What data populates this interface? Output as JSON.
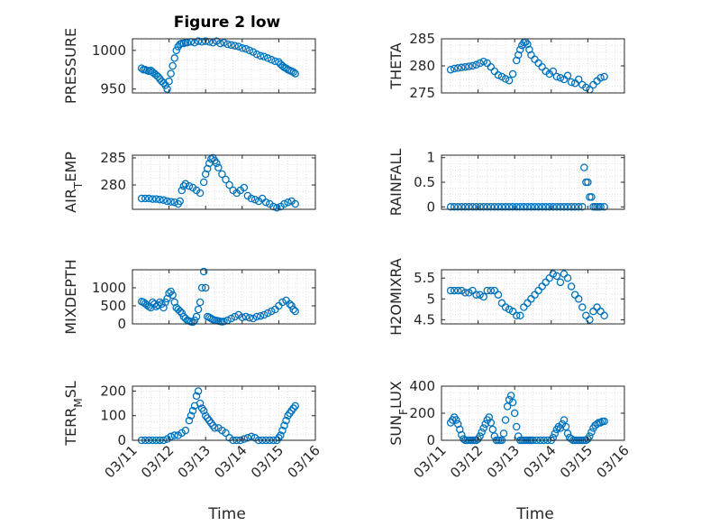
{
  "title": "Figure 2 low",
  "chart_data": {
    "type": "scatter",
    "marker_color": "#0072BD",
    "grid": "dotted minor",
    "x_tick_labels": [
      "03/11",
      "03/12",
      "03/13",
      "03/14",
      "03/15",
      "03/16"
    ],
    "xlim": [
      0,
      5
    ],
    "xlabel": "Time",
    "panels": [
      {
        "ylabel_main": "PRESSURE",
        "ylabel_sub": "",
        "ylim": [
          945,
          1015
        ],
        "yticks": [
          950,
          1000
        ],
        "x": [
          0.25,
          0.3,
          0.35,
          0.4,
          0.45,
          0.5,
          0.55,
          0.6,
          0.65,
          0.7,
          0.75,
          0.8,
          0.85,
          0.9,
          0.95,
          1.0,
          1.05,
          1.1,
          1.15,
          1.2,
          1.25,
          1.3,
          1.35,
          1.4,
          1.45,
          1.5,
          1.6,
          1.7,
          1.8,
          1.9,
          2.0,
          2.1,
          2.2,
          2.3,
          2.4,
          2.5,
          2.6,
          2.7,
          2.8,
          2.9,
          3.0,
          3.1,
          3.2,
          3.3,
          3.4,
          3.5,
          3.6,
          3.7,
          3.8,
          3.9,
          4.0,
          4.05,
          4.1,
          4.15,
          4.2,
          4.25,
          4.3,
          4.35,
          4.4,
          4.45
        ],
        "y": [
          977,
          975,
          975,
          974,
          973,
          974,
          972,
          970,
          968,
          966,
          963,
          960,
          958,
          955,
          950,
          960,
          970,
          980,
          990,
          1000,
          1005,
          1008,
          1009,
          1009,
          1010,
          1010,
          1011,
          1010,
          1012,
          1011,
          1012,
          1011,
          1010,
          1012,
          1009,
          1010,
          1008,
          1007,
          1006,
          1005,
          1003,
          1002,
          1000,
          998,
          995,
          993,
          992,
          990,
          988,
          986,
          985,
          982,
          980,
          978,
          977,
          975,
          974,
          973,
          972,
          970
        ]
      },
      {
        "ylabel_main": "THETA",
        "ylabel_sub": "",
        "ylim": [
          275,
          285
        ],
        "yticks": [
          275,
          280,
          285
        ],
        "x": [
          0.25,
          0.35,
          0.45,
          0.55,
          0.65,
          0.75,
          0.85,
          0.95,
          1.05,
          1.15,
          1.25,
          1.35,
          1.45,
          1.55,
          1.65,
          1.75,
          1.85,
          1.95,
          2.05,
          2.1,
          2.15,
          2.2,
          2.25,
          2.3,
          2.35,
          2.4,
          2.45,
          2.55,
          2.65,
          2.75,
          2.85,
          2.95,
          3.05,
          3.15,
          3.25,
          3.35,
          3.45,
          3.55,
          3.65,
          3.75,
          3.85,
          3.95,
          4.05,
          4.15,
          4.25,
          4.35,
          4.45
        ],
        "y": [
          279.3,
          279.5,
          279.6,
          279.7,
          279.8,
          279.9,
          280.0,
          280.2,
          280.5,
          280.8,
          280.5,
          279.8,
          279.0,
          278.3,
          278.0,
          277.6,
          277.3,
          278.5,
          281.0,
          282.0,
          283.0,
          283.8,
          284.3,
          284.4,
          284.0,
          283.0,
          282.0,
          281.2,
          280.5,
          279.8,
          279.0,
          278.5,
          279.0,
          278.0,
          277.8,
          277.5,
          278.2,
          277.0,
          276.8,
          277.5,
          276.5,
          276.0,
          275.6,
          276.5,
          277.2,
          277.8,
          278.0
        ]
      },
      {
        "ylabel_main": "AIR",
        "ylabel_sub": "T",
        "ylabel_tail": "EMP",
        "ylim": [
          275.5,
          285.5
        ],
        "yticks": [
          280,
          285
        ],
        "x": [
          0.25,
          0.35,
          0.45,
          0.55,
          0.65,
          0.75,
          0.85,
          0.95,
          1.05,
          1.15,
          1.25,
          1.3,
          1.35,
          1.4,
          1.45,
          1.55,
          1.65,
          1.75,
          1.85,
          1.95,
          2.0,
          2.05,
          2.1,
          2.15,
          2.2,
          2.25,
          2.3,
          2.35,
          2.45,
          2.55,
          2.65,
          2.75,
          2.85,
          2.95,
          3.05,
          3.15,
          3.25,
          3.35,
          3.45,
          3.55,
          3.65,
          3.75,
          3.85,
          3.95,
          4.05,
          4.15,
          4.25,
          4.35,
          4.45
        ],
        "y": [
          277.5,
          277.5,
          277.5,
          277.4,
          277.4,
          277.3,
          277.2,
          277.0,
          276.9,
          276.8,
          276.5,
          277.0,
          279.0,
          279.8,
          280.2,
          279.8,
          279.5,
          279.0,
          278.5,
          280.5,
          282.0,
          283.0,
          284.0,
          284.8,
          285.0,
          284.5,
          284.0,
          283.2,
          282.0,
          281.0,
          280.0,
          279.0,
          278.5,
          279.0,
          279.5,
          278.0,
          277.5,
          277.3,
          277.0,
          277.5,
          276.8,
          276.5,
          276.0,
          275.8,
          276.0,
          276.5,
          276.8,
          277.0,
          276.5
        ]
      },
      {
        "ylabel_main": "RAINFALL",
        "ylabel_sub": "",
        "ylim": [
          -0.05,
          1.05
        ],
        "yticks": [
          0,
          0.5,
          1
        ],
        "x": [
          0.25,
          0.35,
          0.45,
          0.55,
          0.65,
          0.75,
          0.85,
          0.95,
          1.05,
          1.15,
          1.25,
          1.35,
          1.45,
          1.55,
          1.65,
          1.75,
          1.85,
          1.95,
          2.05,
          2.15,
          2.25,
          2.35,
          2.45,
          2.55,
          2.65,
          2.75,
          2.85,
          2.95,
          3.05,
          3.15,
          3.25,
          3.35,
          3.45,
          3.55,
          3.65,
          3.75,
          3.85,
          3.9,
          3.95,
          4.0,
          4.05,
          4.1,
          4.15,
          4.2,
          4.25,
          4.3,
          4.35,
          4.45
        ],
        "y": [
          0,
          0,
          0,
          0,
          0,
          0,
          0,
          0,
          0,
          0,
          0,
          0,
          0,
          0,
          0,
          0,
          0,
          0,
          0,
          0,
          0,
          0,
          0,
          0,
          0,
          0,
          0,
          0,
          0,
          0,
          0,
          0,
          0,
          0,
          0,
          0,
          0,
          0.8,
          0.5,
          0.5,
          0.2,
          0.2,
          0,
          0,
          0,
          0,
          0,
          0
        ]
      },
      {
        "ylabel_main": "MIXDEPTH",
        "ylabel_sub": "",
        "ylim": [
          0,
          1500
        ],
        "yticks": [
          0,
          500,
          1000
        ],
        "x": [
          0.25,
          0.3,
          0.35,
          0.4,
          0.45,
          0.5,
          0.55,
          0.6,
          0.65,
          0.7,
          0.75,
          0.8,
          0.85,
          0.9,
          0.95,
          1.0,
          1.05,
          1.1,
          1.15,
          1.2,
          1.25,
          1.3,
          1.35,
          1.4,
          1.45,
          1.5,
          1.55,
          1.6,
          1.65,
          1.7,
          1.75,
          1.8,
          1.85,
          1.9,
          1.95,
          2.0,
          2.05,
          2.1,
          2.15,
          2.2,
          2.25,
          2.3,
          2.35,
          2.4,
          2.45,
          2.5,
          2.6,
          2.7,
          2.8,
          2.9,
          3.0,
          3.1,
          3.2,
          3.3,
          3.4,
          3.5,
          3.6,
          3.7,
          3.8,
          3.9,
          4.0,
          4.1,
          4.2,
          4.3,
          4.35,
          4.4,
          4.45
        ],
        "y": [
          620,
          600,
          560,
          520,
          480,
          450,
          600,
          550,
          480,
          520,
          600,
          550,
          450,
          600,
          700,
          850,
          900,
          800,
          600,
          450,
          400,
          350,
          300,
          200,
          150,
          100,
          80,
          60,
          50,
          100,
          200,
          400,
          600,
          1000,
          1450,
          1000,
          200,
          180,
          150,
          120,
          100,
          90,
          80,
          70,
          60,
          70,
          100,
          150,
          200,
          250,
          180,
          200,
          170,
          150,
          200,
          220,
          250,
          300,
          350,
          400,
          500,
          600,
          650,
          550,
          500,
          400,
          350
        ]
      },
      {
        "ylabel_main": "H2OMIXRA",
        "ylabel_sub": "",
        "ylim": [
          4.4,
          5.7
        ],
        "yticks": [
          4.5,
          5,
          5.5
        ],
        "x": [
          0.25,
          0.35,
          0.45,
          0.55,
          0.65,
          0.75,
          0.85,
          0.95,
          1.05,
          1.15,
          1.25,
          1.35,
          1.45,
          1.55,
          1.65,
          1.75,
          1.85,
          1.95,
          2.05,
          2.15,
          2.25,
          2.35,
          2.45,
          2.55,
          2.65,
          2.75,
          2.85,
          2.95,
          3.05,
          3.15,
          3.25,
          3.35,
          3.45,
          3.55,
          3.65,
          3.75,
          3.85,
          3.95,
          4.05,
          4.15,
          4.25,
          4.35,
          4.45
        ],
        "y": [
          5.2,
          5.2,
          5.2,
          5.2,
          5.15,
          5.15,
          5.2,
          5.1,
          5.1,
          5.05,
          5.2,
          5.2,
          5.2,
          5.1,
          4.9,
          4.8,
          4.75,
          4.7,
          4.6,
          4.6,
          4.8,
          4.9,
          5.0,
          5.1,
          5.2,
          5.3,
          5.4,
          5.5,
          5.6,
          5.55,
          5.4,
          5.6,
          5.5,
          5.3,
          5.1,
          5.0,
          4.8,
          4.6,
          4.5,
          4.7,
          4.8,
          4.7,
          4.6
        ]
      },
      {
        "ylabel_main": "TERR",
        "ylabel_sub": "M",
        "ylabel_tail": "SL",
        "ylim": [
          0,
          220
        ],
        "yticks": [
          0,
          100,
          200
        ],
        "x": [
          0.25,
          0.35,
          0.45,
          0.55,
          0.65,
          0.75,
          0.85,
          0.95,
          1.05,
          1.15,
          1.25,
          1.35,
          1.45,
          1.55,
          1.6,
          1.65,
          1.7,
          1.75,
          1.8,
          1.85,
          1.9,
          1.95,
          2.0,
          2.05,
          2.1,
          2.15,
          2.2,
          2.25,
          2.35,
          2.45,
          2.55,
          2.65,
          2.75,
          2.85,
          2.95,
          3.05,
          3.15,
          3.25,
          3.35,
          3.45,
          3.55,
          3.65,
          3.75,
          3.85,
          3.95,
          4.0,
          4.05,
          4.1,
          4.15,
          4.2,
          4.25,
          4.3,
          4.35,
          4.4,
          4.45
        ],
        "y": [
          0,
          0,
          0,
          0,
          0,
          0,
          0,
          5,
          15,
          20,
          20,
          30,
          40,
          80,
          100,
          120,
          140,
          180,
          200,
          150,
          130,
          120,
          100,
          90,
          80,
          70,
          60,
          50,
          50,
          40,
          30,
          10,
          0,
          0,
          0,
          5,
          10,
          15,
          10,
          0,
          0,
          0,
          0,
          0,
          0,
          10,
          20,
          40,
          60,
          80,
          100,
          110,
          120,
          130,
          140
        ]
      },
      {
        "ylabel_main": "SUN",
        "ylabel_sub": "F",
        "ylabel_tail": "LUX",
        "ylim": [
          0,
          400
        ],
        "yticks": [
          0,
          200,
          400
        ],
        "x": [
          0.25,
          0.3,
          0.35,
          0.4,
          0.45,
          0.5,
          0.55,
          0.6,
          0.65,
          0.7,
          0.75,
          0.8,
          0.85,
          0.9,
          0.95,
          1.0,
          1.05,
          1.1,
          1.15,
          1.2,
          1.25,
          1.3,
          1.35,
          1.4,
          1.45,
          1.5,
          1.55,
          1.6,
          1.65,
          1.7,
          1.75,
          1.8,
          1.85,
          1.9,
          1.95,
          2.0,
          2.05,
          2.1,
          2.15,
          2.2,
          2.25,
          2.3,
          2.35,
          2.4,
          2.45,
          2.5,
          2.6,
          2.7,
          2.8,
          2.9,
          3.0,
          3.05,
          3.1,
          3.15,
          3.2,
          3.25,
          3.3,
          3.35,
          3.4,
          3.45,
          3.5,
          3.55,
          3.6,
          3.65,
          3.7,
          3.75,
          3.8,
          3.85,
          3.9,
          3.95,
          4.0,
          4.05,
          4.1,
          4.15,
          4.2,
          4.25,
          4.3,
          4.35,
          4.4,
          4.45
        ],
        "y": [
          130,
          150,
          170,
          150,
          120,
          80,
          40,
          10,
          0,
          0,
          0,
          0,
          0,
          0,
          0,
          10,
          30,
          60,
          90,
          120,
          150,
          170,
          130,
          80,
          30,
          0,
          0,
          0,
          0,
          50,
          150,
          250,
          300,
          330,
          280,
          200,
          100,
          30,
          0,
          0,
          0,
          0,
          0,
          0,
          0,
          0,
          0,
          0,
          0,
          0,
          0,
          20,
          50,
          80,
          100,
          90,
          120,
          150,
          100,
          50,
          20,
          10,
          0,
          0,
          0,
          0,
          0,
          0,
          0,
          0,
          10,
          30,
          60,
          90,
          110,
          120,
          130,
          130,
          140,
          140
        ]
      }
    ]
  }
}
